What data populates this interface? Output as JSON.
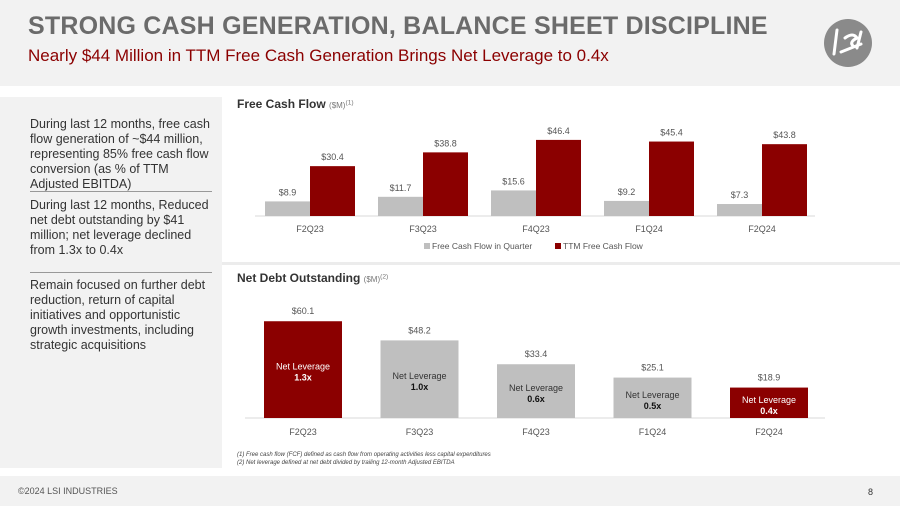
{
  "header": {
    "title": "STRONG CASH GENERATION, BALANCE SHEET DISCIPLINE",
    "subtitle": "Nearly $44 Million  in TTM Free Cash Generation Brings Net Leverage to 0.4x",
    "logo": "LSI"
  },
  "sidebar": {
    "points": [
      "During last 12 months, free cash flow generation of ~$44 million, representing 85% free cash flow conversion (as % of TTM Adjusted EBITDA)",
      "During last 12 months, Reduced net debt outstanding by $41 million; net leverage declined from 1.3x to 0.4x",
      "Remain focused on further debt reduction, return of capital initiatives and opportunistic growth investments, including strategic acquisitions"
    ]
  },
  "colors": {
    "red": "#8b0000",
    "gray": "#bfbfbf"
  },
  "chart_data": [
    {
      "type": "bar",
      "title": "Free Cash Flow",
      "unit": "($M)",
      "footnote_ref": "(1)",
      "categories": [
        "F2Q23",
        "F3Q23",
        "F4Q23",
        "F1Q24",
        "F2Q24"
      ],
      "series": [
        {
          "name": "Free Cash Flow in Quarter",
          "values": [
            8.9,
            11.7,
            15.6,
            9.2,
            7.3
          ],
          "labels": [
            "$8.9",
            "$11.7",
            "$15.6",
            "$9.2",
            "$7.3"
          ],
          "color": "#bfbfbf"
        },
        {
          "name": "TTM Free Cash Flow",
          "values": [
            30.4,
            38.8,
            46.4,
            45.4,
            43.8
          ],
          "labels": [
            "$30.4",
            "$38.8",
            "$46.4",
            "$45.4",
            "$43.8"
          ],
          "color": "#8b0000"
        }
      ],
      "legend": "bottom"
    },
    {
      "type": "bar",
      "title": "Net Debt Outstanding",
      "unit": "($M)",
      "footnote_ref": "(2)",
      "categories": [
        "F2Q23",
        "F3Q23",
        "F4Q23",
        "F1Q24",
        "F2Q24"
      ],
      "values": [
        60.1,
        48.2,
        33.4,
        25.1,
        18.9
      ],
      "labels": [
        "$60.1",
        "$48.2",
        "$33.4",
        "$25.1",
        "$18.9"
      ],
      "inner_label": "Net Leverage",
      "leverage": [
        "1.3x",
        "1.0x",
        "0.6x",
        "0.5x",
        "0.4x"
      ],
      "colors": [
        "#8b0000",
        "#bfbfbf",
        "#bfbfbf",
        "#bfbfbf",
        "#8b0000"
      ]
    }
  ],
  "footnotes": [
    "(1)    Free cash flow (FCF) defined  as cash flow from operating  activities less capital expenditures",
    "(2)    Net leverage defined at net debt divided  by trailing  12-month Adjusted  EBITDA"
  ],
  "footer": {
    "copyright": "©2024 LSI INDUSTRIES",
    "page": "8"
  }
}
